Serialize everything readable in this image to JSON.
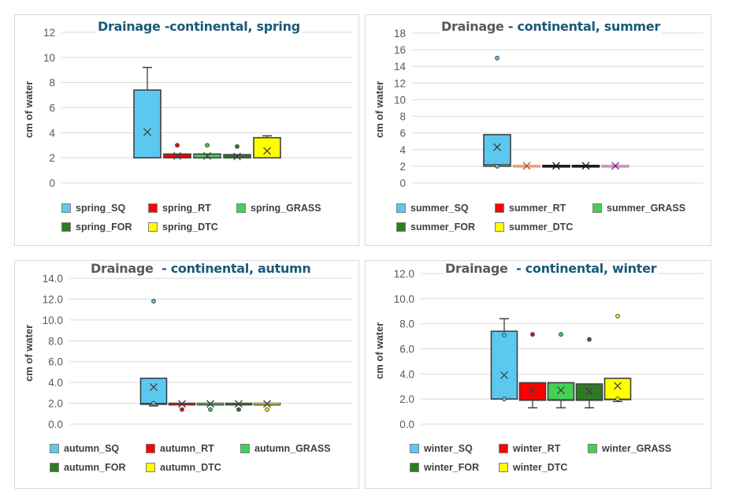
{
  "chart_data": [
    {
      "type": "boxplot",
      "title_part1": "Drainage -continental, spring",
      "title_part2": "",
      "title_all_teal": true,
      "ylabel": "cm of water",
      "ylim": [
        0,
        12
      ],
      "ticks": [
        "0",
        "2",
        "4",
        "6",
        "8",
        "10",
        "12"
      ],
      "grid": true,
      "legend_position": "bottom",
      "series": [
        {
          "name": "spring_SQ",
          "color": "#5BC8F0",
          "min": 2.0,
          "q1": 2.0,
          "median": 2.0,
          "q3": 7.4,
          "max": 9.2,
          "mean": 4.05,
          "outliers": []
        },
        {
          "name": "spring_RT",
          "color": "#FF0000",
          "min": 2.0,
          "q1": 2.0,
          "median": 2.15,
          "q3": 2.3,
          "max": 2.3,
          "mean": 2.15,
          "outliers": [
            3.0
          ]
        },
        {
          "name": "spring_GRASS",
          "color": "#44D056",
          "min": 2.0,
          "q1": 2.0,
          "median": 2.15,
          "q3": 2.3,
          "max": 2.3,
          "mean": 2.15,
          "outliers": [
            3.0
          ]
        },
        {
          "name": "spring_FOR",
          "color": "#2E7A25",
          "min": 2.0,
          "q1": 2.0,
          "median": 2.1,
          "q3": 2.25,
          "max": 2.25,
          "mean": 2.1,
          "outliers": [
            2.9
          ]
        },
        {
          "name": "spring_DTC",
          "color": "#FFFF00",
          "min": 2.0,
          "q1": 2.0,
          "median": 2.0,
          "q3": 3.6,
          "max": 3.75,
          "mean": 2.55,
          "outliers": []
        }
      ]
    },
    {
      "type": "boxplot",
      "title_part1": "Drainage ",
      "title_part2": "- continental, summer",
      "ylabel": "cm of water",
      "ylim": [
        0,
        18
      ],
      "ticks": [
        "0",
        "2",
        "4",
        "6",
        "8",
        "10",
        "12",
        "14",
        "16",
        "18"
      ],
      "grid": true,
      "legend_position": "bottom",
      "series": [
        {
          "name": "summer_SQ",
          "color": "#5BC8F0",
          "min": 2.0,
          "q1": 2.0,
          "median": 2.2,
          "q3": 5.8,
          "max": 5.8,
          "mean": 4.3,
          "outliers": [
            15.0,
            2.0
          ]
        },
        {
          "name": "summer_RT",
          "color": "#FF0000",
          "line": "#E8A080",
          "mark": "#C0501A",
          "min": 2.0,
          "q1": 2.0,
          "median": 2.05,
          "q3": 2.1,
          "max": 2.1,
          "mean": 2.05,
          "outliers": []
        },
        {
          "name": "summer_GRASS",
          "color": "#44D056",
          "line": "#1a1a1a",
          "mark": "#1a1a1a",
          "min": 2.0,
          "q1": 2.0,
          "median": 2.05,
          "q3": 2.1,
          "max": 2.1,
          "mean": 2.05,
          "outliers": []
        },
        {
          "name": "summer_FOR",
          "color": "#2E7A25",
          "line": "#1a1a1a",
          "mark": "#1a1a1a",
          "min": 2.0,
          "q1": 2.0,
          "median": 2.05,
          "q3": 2.1,
          "max": 2.1,
          "mean": 2.05,
          "outliers": []
        },
        {
          "name": "summer_DTC",
          "color": "#FFFF00",
          "line": "#C890C8",
          "mark": "#7A2080",
          "min": 2.0,
          "q1": 2.0,
          "median": 2.05,
          "q3": 2.1,
          "max": 2.1,
          "mean": 2.05,
          "outliers": []
        }
      ]
    },
    {
      "type": "boxplot",
      "title_part1": "Drainage  ",
      "title_part2": "- continental, autumn",
      "ylabel": "cm of water",
      "ylim": [
        0,
        14
      ],
      "ticks": [
        "0.0",
        "2.0",
        "4.0",
        "6.0",
        "8.0",
        "10.0",
        "12.0",
        "14.0"
      ],
      "grid": true,
      "legend_position": "bottom",
      "series": [
        {
          "name": "autumn_SQ",
          "color": "#5BC8F0",
          "min": 1.75,
          "q1": 1.9,
          "median": 2.0,
          "q3": 4.4,
          "max": 4.4,
          "mean": 3.55,
          "outliers": [
            11.8,
            2.0
          ]
        },
        {
          "name": "autumn_RT",
          "color": "#FF0000",
          "min": 1.85,
          "q1": 1.85,
          "median": 1.95,
          "q3": 2.0,
          "max": 2.0,
          "mean": 1.95,
          "outliers": [
            1.4
          ]
        },
        {
          "name": "autumn_GRASS",
          "color": "#44D056",
          "min": 1.85,
          "q1": 1.85,
          "median": 1.95,
          "q3": 2.0,
          "max": 2.0,
          "mean": 1.95,
          "outliers": [
            1.4
          ]
        },
        {
          "name": "autumn_FOR",
          "color": "#2E7A25",
          "min": 1.85,
          "q1": 1.85,
          "median": 1.95,
          "q3": 2.0,
          "max": 2.0,
          "mean": 1.95,
          "outliers": [
            1.4
          ]
        },
        {
          "name": "autumn_DTC",
          "color": "#FFFF00",
          "min": 1.85,
          "q1": 1.85,
          "median": 1.95,
          "q3": 2.0,
          "max": 2.0,
          "mean": 1.95,
          "outliers": [
            1.4
          ]
        }
      ]
    },
    {
      "type": "boxplot",
      "title_part1": "Drainage  ",
      "title_part2": "- continental, winter",
      "ylabel": "cm of water",
      "ylim": [
        0,
        12
      ],
      "ticks": [
        "0.0",
        "2.0",
        "4.0",
        "6.0",
        "8.0",
        "10.0",
        "12.0"
      ],
      "grid": true,
      "legend_position": "bottom",
      "series": [
        {
          "name": "winter_SQ",
          "color": "#5BC8F0",
          "min": 2.0,
          "q1": 2.0,
          "median": 2.0,
          "q3": 7.4,
          "max": 8.4,
          "mean": 3.9,
          "outliers": [
            7.1,
            2.0
          ]
        },
        {
          "name": "winter_RT",
          "color": "#FF0000",
          "min": 1.3,
          "q1": 1.9,
          "median": 1.95,
          "q3": 3.3,
          "max": 3.3,
          "mean": 2.7,
          "outliers": [
            7.15
          ]
        },
        {
          "name": "winter_GRASS",
          "color": "#44D056",
          "min": 1.3,
          "q1": 1.9,
          "median": 1.95,
          "q3": 3.3,
          "max": 3.3,
          "mean": 2.7,
          "outliers": [
            7.15
          ]
        },
        {
          "name": "winter_FOR",
          "color": "#2E7A25",
          "min": 1.3,
          "q1": 1.9,
          "median": 1.95,
          "q3": 3.2,
          "max": 3.2,
          "mean": 2.6,
          "outliers": [
            6.75
          ]
        },
        {
          "name": "winter_DTC",
          "color": "#FFFF00",
          "min": 1.8,
          "q1": 1.95,
          "median": 2.0,
          "q3": 3.65,
          "max": 3.65,
          "mean": 3.05,
          "outliers": [
            8.6,
            2.0
          ]
        }
      ]
    }
  ]
}
